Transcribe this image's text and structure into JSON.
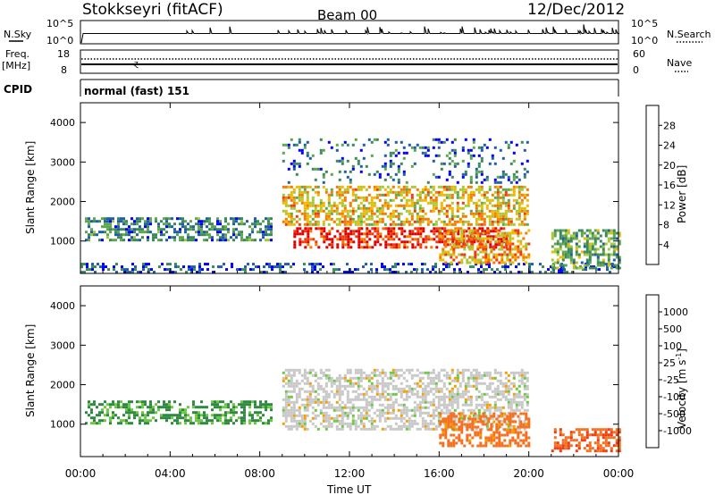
{
  "header": {
    "station": "Stokkseyri (fitACF)",
    "beam": "Beam 00",
    "date": "12/Dec/2012"
  },
  "nsky_panel": {
    "left_label": "N.Sky",
    "right_label": "N.Search",
    "left_ticks": [
      "10^5",
      "10^0"
    ],
    "right_ticks": [
      "10^5",
      "10^0"
    ]
  },
  "freq_panel": {
    "left_label_line1": "Freq.",
    "left_label_line2": "[MHz]",
    "right_label": "Nave",
    "left_ticks": [
      "18",
      "8"
    ],
    "right_ticks": [
      "60",
      "0"
    ]
  },
  "cpid_panel": {
    "label": "CPID",
    "text": "normal (fast) 151"
  },
  "colors": {
    "power_scale": [
      "#0000ff",
      "#1f5fa8",
      "#3a8a5a",
      "#5fa650",
      "#a8c83a",
      "#f0b800",
      "#f57a00",
      "#f03a10",
      "#e00000"
    ],
    "velocity_scale": [
      "#1020c8",
      "#2a5fb0",
      "#2e8a40",
      "#6cc840",
      "#c8c8c8",
      "#f5a000",
      "#f57020",
      "#f03c10",
      "#e00000"
    ],
    "ground_gray": "#c8c8c8"
  },
  "chart_data": [
    {
      "type": "heatmap",
      "title": "",
      "xlabel": "",
      "ylabel": "Slant Range [km]",
      "x_ticks": [
        "00:00",
        "04:00",
        "08:00",
        "12:00",
        "16:00",
        "20:00",
        "00:00"
      ],
      "y_ticks": [
        "1000",
        "2000",
        "3000",
        "4000"
      ],
      "xlim_hours": [
        0,
        24
      ],
      "ylim_km": [
        180,
        4500
      ],
      "colorbar": {
        "label": "Power [dB]",
        "ticks": [
          "28",
          "24",
          "20",
          "16",
          "12",
          "8",
          "4"
        ],
        "range": [
          0,
          30
        ]
      },
      "echo_regions": [
        {
          "name": "early-band",
          "t": [
            0.2,
            8.5
          ],
          "r": [
            1000,
            1600
          ],
          "level": 8
        },
        {
          "name": "ground-scatter-floor",
          "t": [
            0,
            24
          ],
          "r": [
            200,
            450
          ],
          "level": 4
        },
        {
          "name": "arc-strong",
          "t": [
            9.5,
            19
          ],
          "r": [
            850,
            1350
          ],
          "level": 27
        },
        {
          "name": "arc-upper",
          "t": [
            9,
            20
          ],
          "r": [
            1400,
            2400
          ],
          "level": 18
        },
        {
          "name": "lower-streak",
          "t": [
            16,
            20
          ],
          "r": [
            450,
            1300
          ],
          "level": 20
        },
        {
          "name": "late-echoes",
          "t": [
            21,
            24
          ],
          "r": [
            300,
            1300
          ],
          "level": 12
        },
        {
          "name": "high-range-patches",
          "t": [
            9,
            20
          ],
          "r": [
            2500,
            3600
          ],
          "level": 6
        }
      ]
    },
    {
      "type": "heatmap",
      "title": "",
      "xlabel": "Time UT",
      "ylabel": "Slant Range [km]",
      "x_ticks": [
        "00:00",
        "04:00",
        "08:00",
        "12:00",
        "16:00",
        "20:00",
        "00:00"
      ],
      "y_ticks": [
        "1000",
        "2000",
        "3000",
        "4000"
      ],
      "xlim_hours": [
        0,
        24
      ],
      "ylim_km": [
        180,
        4500
      ],
      "colorbar": {
        "label": "Velocity [m s^-1]",
        "ticks": [
          "1000",
          "500",
          "100",
          "25",
          "-25",
          "-100",
          "-500",
          "-1000"
        ],
        "range": [
          -1000,
          1000
        ]
      },
      "echo_regions": [
        {
          "name": "early-band",
          "t": [
            0.2,
            8.5
          ],
          "r": [
            1000,
            1600
          ],
          "velocity": 60
        },
        {
          "name": "ground-scatter-arc",
          "t": [
            9,
            20
          ],
          "r": [
            850,
            2400
          ],
          "velocity": 0
        },
        {
          "name": "lower-streak",
          "t": [
            16,
            20
          ],
          "r": [
            450,
            1300
          ],
          "velocity": -150
        },
        {
          "name": "late-echoes",
          "t": [
            21,
            24
          ],
          "r": [
            300,
            900
          ],
          "velocity": -450
        }
      ]
    }
  ]
}
